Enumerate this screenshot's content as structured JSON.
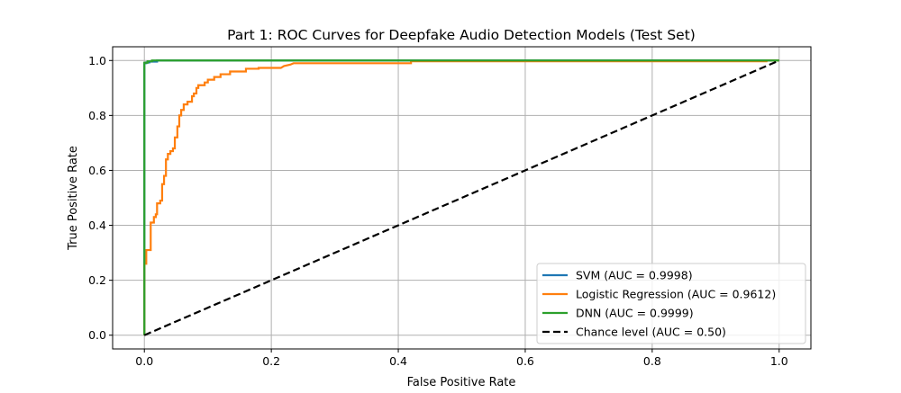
{
  "chart_data": {
    "type": "line",
    "title": "Part 1: ROC Curves for Deepfake Audio Detection Models (Test Set)",
    "xlabel": "False Positive Rate",
    "ylabel": "True Positive Rate",
    "xlim": [
      -0.05,
      1.05
    ],
    "ylim": [
      -0.05,
      1.05
    ],
    "xticks": [
      "0.0",
      "0.2",
      "0.4",
      "0.6",
      "0.8",
      "1.0"
    ],
    "yticks": [
      "0.0",
      "0.2",
      "0.4",
      "0.6",
      "0.8",
      "1.0"
    ],
    "grid": true,
    "legend_position": "lower-right",
    "series": [
      {
        "name": "SVM (AUC = 0.9998)",
        "color": "#1f77b4",
        "style": "solid",
        "points": [
          [
            0,
            0
          ],
          [
            0,
            0.99
          ],
          [
            0.003,
            0.99
          ],
          [
            0.003,
            0.993
          ],
          [
            0.008,
            0.993
          ],
          [
            0.008,
            0.996
          ],
          [
            0.02,
            0.996
          ],
          [
            0.02,
            1.0
          ],
          [
            1.0,
            1.0
          ]
        ]
      },
      {
        "name": "Logistic Regression (AUC = 0.9612)",
        "color": "#ff7f0e",
        "style": "solid",
        "points": [
          [
            0,
            0
          ],
          [
            0,
            0.26
          ],
          [
            0.003,
            0.26
          ],
          [
            0.003,
            0.31
          ],
          [
            0.01,
            0.31
          ],
          [
            0.01,
            0.41
          ],
          [
            0.015,
            0.41
          ],
          [
            0.015,
            0.43
          ],
          [
            0.018,
            0.43
          ],
          [
            0.018,
            0.44
          ],
          [
            0.02,
            0.44
          ],
          [
            0.02,
            0.48
          ],
          [
            0.025,
            0.48
          ],
          [
            0.025,
            0.49
          ],
          [
            0.028,
            0.49
          ],
          [
            0.028,
            0.55
          ],
          [
            0.031,
            0.55
          ],
          [
            0.031,
            0.58
          ],
          [
            0.034,
            0.58
          ],
          [
            0.034,
            0.64
          ],
          [
            0.037,
            0.64
          ],
          [
            0.037,
            0.66
          ],
          [
            0.041,
            0.66
          ],
          [
            0.041,
            0.67
          ],
          [
            0.045,
            0.67
          ],
          [
            0.045,
            0.68
          ],
          [
            0.048,
            0.68
          ],
          [
            0.048,
            0.72
          ],
          [
            0.052,
            0.72
          ],
          [
            0.052,
            0.76
          ],
          [
            0.055,
            0.76
          ],
          [
            0.055,
            0.8
          ],
          [
            0.058,
            0.8
          ],
          [
            0.058,
            0.82
          ],
          [
            0.062,
            0.82
          ],
          [
            0.062,
            0.84
          ],
          [
            0.068,
            0.84
          ],
          [
            0.068,
            0.85
          ],
          [
            0.075,
            0.85
          ],
          [
            0.075,
            0.87
          ],
          [
            0.078,
            0.87
          ],
          [
            0.078,
            0.88
          ],
          [
            0.082,
            0.88
          ],
          [
            0.082,
            0.9
          ],
          [
            0.085,
            0.9
          ],
          [
            0.085,
            0.91
          ],
          [
            0.095,
            0.91
          ],
          [
            0.095,
            0.92
          ],
          [
            0.1,
            0.92
          ],
          [
            0.1,
            0.93
          ],
          [
            0.11,
            0.93
          ],
          [
            0.11,
            0.94
          ],
          [
            0.12,
            0.94
          ],
          [
            0.12,
            0.95
          ],
          [
            0.135,
            0.95
          ],
          [
            0.135,
            0.96
          ],
          [
            0.16,
            0.96
          ],
          [
            0.16,
            0.97
          ],
          [
            0.18,
            0.97
          ],
          [
            0.18,
            0.973
          ],
          [
            0.215,
            0.973
          ],
          [
            0.22,
            0.98
          ],
          [
            0.23,
            0.985
          ],
          [
            0.235,
            0.99
          ],
          [
            0.42,
            0.99
          ],
          [
            0.42,
            0.997
          ],
          [
            0.98,
            0.997
          ],
          [
            0.98,
            1.0
          ],
          [
            1.0,
            1.0
          ]
        ]
      },
      {
        "name": "DNN (AUC = 0.9999)",
        "color": "#2ca02c",
        "style": "solid",
        "points": [
          [
            0,
            0
          ],
          [
            0,
            0.992
          ],
          [
            0.005,
            0.992
          ],
          [
            0.005,
            0.997
          ],
          [
            0.012,
            0.997
          ],
          [
            0.012,
            1.0
          ],
          [
            1.0,
            1.0
          ]
        ]
      },
      {
        "name": "Chance level (AUC = 0.50)",
        "color": "#000000",
        "style": "dashed",
        "points": [
          [
            0,
            0
          ],
          [
            1,
            1
          ]
        ]
      }
    ]
  }
}
